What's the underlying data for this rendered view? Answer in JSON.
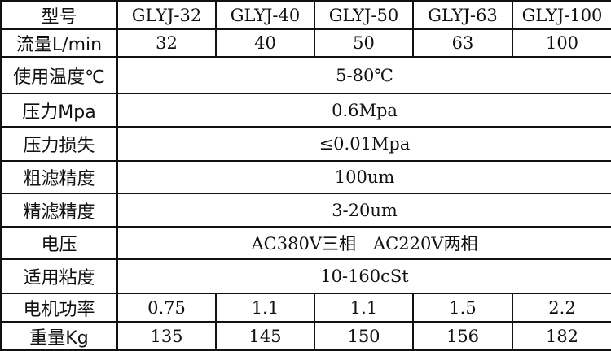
{
  "header": {
    "label": "型号",
    "models": [
      "GLYJ-32",
      "GLYJ-40",
      "GLYJ-50",
      "GLYJ-63",
      "GLYJ-100"
    ]
  },
  "flow": {
    "label": "流量L/min",
    "values": [
      "32",
      "40",
      "50",
      "63",
      "100"
    ]
  },
  "temperature": {
    "label": "使用温度℃",
    "value": "5-80℃"
  },
  "pressure": {
    "label": "压力Mpa",
    "value": "0.6Mpa"
  },
  "pressure_loss": {
    "label": "压力损失",
    "value": "≤0.01Mpa"
  },
  "coarse_filter": {
    "label": "粗滤精度",
    "value": "100um"
  },
  "fine_filter": {
    "label": "精滤精度",
    "value": "3-20um"
  },
  "voltage": {
    "label": "电压",
    "value": "AC380V三相　AC220V两相"
  },
  "viscosity": {
    "label": "适用粘度",
    "value": "10-160cSt"
  },
  "motor_power": {
    "label": "电机功率",
    "values": [
      "0.75",
      "1.1",
      "1.1",
      "1.5",
      "2.2"
    ]
  },
  "weight": {
    "label": "重量Kg",
    "values": [
      "135",
      "145",
      "150",
      "156",
      "182"
    ]
  }
}
